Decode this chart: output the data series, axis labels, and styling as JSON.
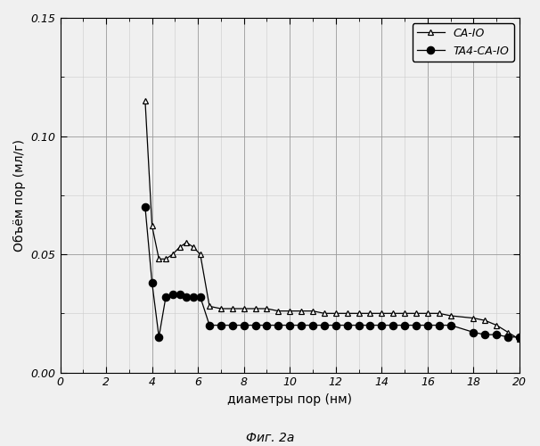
{
  "ca10_x": [
    3.7,
    4.0,
    4.3,
    4.6,
    4.9,
    5.2,
    5.5,
    5.8,
    6.1,
    6.5,
    7.0,
    7.5,
    8.0,
    8.5,
    9.0,
    9.5,
    10.0,
    10.5,
    11.0,
    11.5,
    12.0,
    12.5,
    13.0,
    13.5,
    14.0,
    14.5,
    15.0,
    15.5,
    16.0,
    16.5,
    17.0,
    18.0,
    18.5,
    19.0,
    19.5,
    20.0
  ],
  "ca10_y": [
    0.115,
    0.062,
    0.048,
    0.048,
    0.05,
    0.053,
    0.055,
    0.053,
    0.05,
    0.028,
    0.027,
    0.027,
    0.027,
    0.027,
    0.027,
    0.026,
    0.026,
    0.026,
    0.026,
    0.025,
    0.025,
    0.025,
    0.025,
    0.025,
    0.025,
    0.025,
    0.025,
    0.025,
    0.025,
    0.025,
    0.024,
    0.023,
    0.022,
    0.02,
    0.017,
    0.014
  ],
  "ta4ca10_x": [
    3.7,
    4.0,
    4.3,
    4.6,
    4.9,
    5.2,
    5.5,
    5.8,
    6.1,
    6.5,
    7.0,
    7.5,
    8.0,
    8.5,
    9.0,
    9.5,
    10.0,
    10.5,
    11.0,
    11.5,
    12.0,
    12.5,
    13.0,
    13.5,
    14.0,
    14.5,
    15.0,
    15.5,
    16.0,
    16.5,
    17.0,
    18.0,
    18.5,
    19.0,
    19.5,
    20.0
  ],
  "ta4ca10_y": [
    0.07,
    0.038,
    0.015,
    0.032,
    0.033,
    0.033,
    0.032,
    0.032,
    0.032,
    0.02,
    0.02,
    0.02,
    0.02,
    0.02,
    0.02,
    0.02,
    0.02,
    0.02,
    0.02,
    0.02,
    0.02,
    0.02,
    0.02,
    0.02,
    0.02,
    0.02,
    0.02,
    0.02,
    0.02,
    0.02,
    0.02,
    0.017,
    0.016,
    0.016,
    0.015,
    0.015
  ],
  "xlabel": "диаметры пор (нм)",
  "ylabel": "Объём пор (мл/г)",
  "caption": "Фиг. 2a",
  "legend_ca10": "CA-IO",
  "legend_ta4ca10": "TA4-CA-IO",
  "xlim": [
    0,
    20
  ],
  "ylim": [
    0.0,
    0.15
  ],
  "xticks": [
    0,
    2,
    4,
    6,
    8,
    10,
    12,
    14,
    16,
    18,
    20
  ],
  "yticks": [
    0.0,
    0.05,
    0.1,
    0.15
  ],
  "ytick_labels": [
    "0.00",
    "0.05",
    "0.10",
    "0.15"
  ],
  "line_color": "#000000",
  "bg_color": "#f0f0f0"
}
